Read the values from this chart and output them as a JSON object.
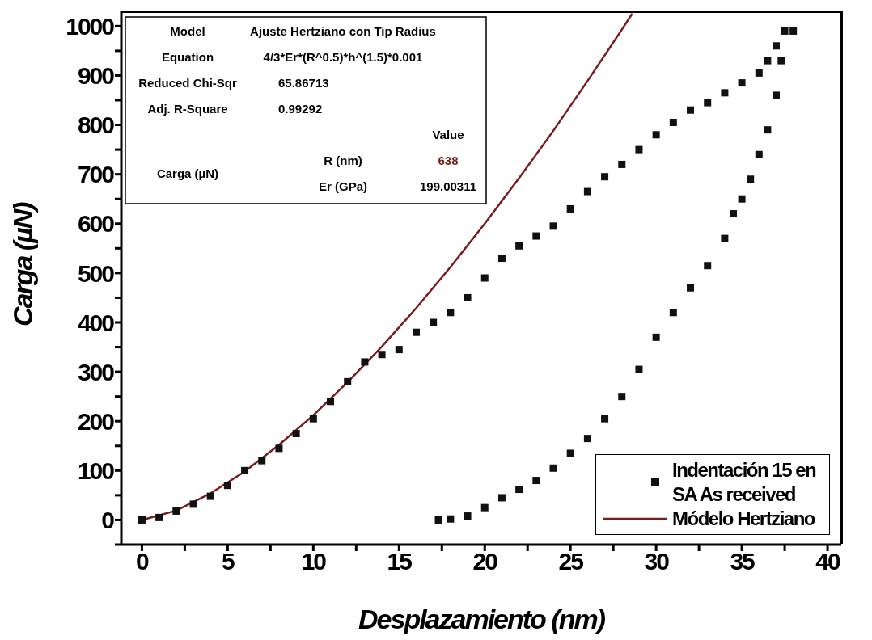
{
  "chart_data": {
    "type": "scatter",
    "xlabel": "Desplazamiento (nm)",
    "ylabel": "Carga (µN)",
    "xlim": [
      -1.2,
      40.8
    ],
    "ylim": [
      -50,
      1030
    ],
    "xticks": [
      0,
      {
        "value": 2.5,
        "label": null
      },
      5,
      {
        "value": 7.5,
        "label": null
      },
      10,
      {
        "value": 12.5,
        "label": null
      },
      15,
      {
        "value": 17.5,
        "label": null
      },
      20,
      {
        "value": 22.5,
        "label": null
      },
      25,
      {
        "value": 27.5,
        "label": null
      },
      30,
      {
        "value": 32.5,
        "label": null
      },
      35,
      {
        "value": 37.5,
        "label": null
      },
      40
    ],
    "yticks": [
      {
        "value": -50,
        "label": null
      },
      0,
      {
        "value": 50,
        "label": null
      },
      100,
      {
        "value": 150,
        "label": null
      },
      200,
      {
        "value": 250,
        "label": null
      },
      300,
      {
        "value": 350,
        "label": null
      },
      400,
      {
        "value": 450,
        "label": null
      },
      500,
      {
        "value": 550,
        "label": null
      },
      600,
      {
        "value": 650,
        "label": null
      },
      700,
      {
        "value": 750,
        "label": null
      },
      800,
      {
        "value": 850,
        "label": null
      },
      900,
      {
        "value": 950,
        "label": null
      },
      1000
    ],
    "grid": false,
    "legend": "bottom right",
    "marker": "square",
    "series": [
      {
        "name": "Indentación 15 en SA As received",
        "type": "scatter",
        "color": "#111111",
        "x": [
          0,
          1,
          2,
          3,
          4,
          5,
          6,
          7,
          8,
          9,
          10,
          11,
          12,
          13,
          14,
          15,
          16,
          17,
          18,
          19,
          20,
          21,
          22,
          23,
          24,
          25,
          26,
          27,
          28,
          29,
          30,
          31,
          32,
          33,
          34,
          35,
          36,
          36.5,
          37,
          37.5,
          38,
          37.3,
          37,
          36.5,
          36,
          35.5,
          35,
          34.5,
          34,
          33,
          32,
          31,
          30,
          29,
          28,
          27,
          26,
          25,
          24,
          23,
          22,
          21,
          20,
          19,
          18,
          17.3
        ],
        "values": [
          0,
          5,
          18,
          32,
          48,
          70,
          100,
          120,
          145,
          175,
          205,
          240,
          280,
          320,
          335,
          345,
          380,
          400,
          420,
          450,
          490,
          530,
          555,
          575,
          595,
          630,
          665,
          695,
          720,
          750,
          780,
          805,
          830,
          845,
          865,
          885,
          905,
          930,
          960,
          990,
          990,
          930,
          860,
          790,
          740,
          690,
          650,
          620,
          570,
          515,
          470,
          420,
          370,
          305,
          250,
          205,
          165,
          135,
          105,
          80,
          62,
          45,
          25,
          8,
          2,
          0
        ]
      },
      {
        "name": "Módelo Hertziano",
        "type": "line",
        "color": "#7a1c1c",
        "marker": "none",
        "x": [
          0,
          2,
          4,
          6,
          8,
          10,
          12,
          14,
          16,
          18,
          20,
          22,
          24,
          26,
          28,
          28.6
        ],
        "values": [
          0,
          19,
          54,
          98,
          152,
          212,
          279,
          351,
          429,
          512,
          600,
          692,
          788,
          889,
          993,
          1025
        ]
      }
    ],
    "annotations": [
      "Model",
      "Ajuste Hertziano con Tip Radius",
      "Equation",
      "4/3*Er*(R^0.5)*h^(1.5)*0.001",
      "Reduced Chi-Sqr",
      "65.86713",
      "Adj. R-Square",
      "0.99292",
      "Value",
      "Carga (µN)",
      "R (nm)",
      "638",
      "Er (GPa)",
      "199.00311"
    ]
  }
}
